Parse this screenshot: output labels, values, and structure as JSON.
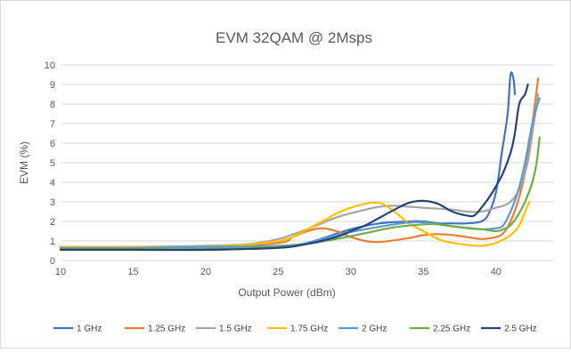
{
  "chart_data": {
    "type": "line",
    "title": "EVM 32QAM @ 2Msps",
    "xlabel": "Output Power (dBm)",
    "ylabel": "EVM (%)",
    "xlim": [
      10,
      44
    ],
    "ylim": [
      0,
      10
    ],
    "xticks": [
      10,
      15,
      20,
      25,
      30,
      35,
      40
    ],
    "yticks": [
      0,
      1,
      2,
      3,
      4,
      5,
      6,
      7,
      8,
      9,
      10
    ],
    "grid": "horizontal",
    "legend_position": "bottom",
    "series": [
      {
        "name": "1 GHz",
        "color": "#4472C4",
        "points": [
          [
            10,
            0.55
          ],
          [
            15,
            0.55
          ],
          [
            20,
            0.55
          ],
          [
            25,
            0.65
          ],
          [
            27,
            0.9
          ],
          [
            30,
            1.6
          ],
          [
            32,
            1.9
          ],
          [
            34,
            2.0
          ],
          [
            35,
            2.0
          ],
          [
            36,
            1.9
          ],
          [
            37,
            1.9
          ],
          [
            38,
            1.9
          ],
          [
            39,
            2.0
          ],
          [
            39.5,
            2.4
          ],
          [
            40,
            3.5
          ],
          [
            40.4,
            5.5
          ],
          [
            40.8,
            7.5
          ],
          [
            41.0,
            9.5
          ],
          [
            41.2,
            9.3
          ],
          [
            41.3,
            8.5
          ]
        ]
      },
      {
        "name": "1.25 GHz",
        "color": "#ED7D31",
        "points": [
          [
            10,
            0.6
          ],
          [
            15,
            0.6
          ],
          [
            20,
            0.65
          ],
          [
            25,
            0.9
          ],
          [
            26,
            1.2
          ],
          [
            27,
            1.5
          ],
          [
            28,
            1.65
          ],
          [
            29,
            1.5
          ],
          [
            30,
            1.2
          ],
          [
            31,
            1.0
          ],
          [
            32,
            0.95
          ],
          [
            34,
            1.15
          ],
          [
            35,
            1.3
          ],
          [
            36,
            1.35
          ],
          [
            37,
            1.3
          ],
          [
            38,
            1.2
          ],
          [
            39,
            1.1
          ],
          [
            40,
            1.2
          ],
          [
            40.5,
            1.4
          ],
          [
            41,
            2.0
          ],
          [
            41.5,
            3.0
          ],
          [
            42,
            4.5
          ],
          [
            42.5,
            7.0
          ],
          [
            42.9,
            9.3
          ]
        ]
      },
      {
        "name": "1.5 GHz",
        "color": "#A5A5A5",
        "points": [
          [
            10,
            0.7
          ],
          [
            15,
            0.7
          ],
          [
            20,
            0.75
          ],
          [
            23,
            0.85
          ],
          [
            25,
            1.1
          ],
          [
            27,
            1.6
          ],
          [
            29,
            2.2
          ],
          [
            31,
            2.6
          ],
          [
            32,
            2.75
          ],
          [
            33,
            2.8
          ],
          [
            34,
            2.75
          ],
          [
            35,
            2.7
          ],
          [
            37,
            2.6
          ],
          [
            38,
            2.5
          ],
          [
            39,
            2.5
          ],
          [
            40,
            2.7
          ],
          [
            40.5,
            2.8
          ],
          [
            41,
            3.0
          ],
          [
            41.5,
            3.5
          ],
          [
            42,
            4.5
          ],
          [
            42.3,
            5.5
          ],
          [
            42.6,
            7.0
          ],
          [
            42.9,
            8.5
          ]
        ]
      },
      {
        "name": "1.75 GHz",
        "color": "#FFC000",
        "points": [
          [
            10,
            0.7
          ],
          [
            15,
            0.7
          ],
          [
            20,
            0.7
          ],
          [
            25,
            1.0
          ],
          [
            27,
            1.6
          ],
          [
            29,
            2.4
          ],
          [
            30,
            2.7
          ],
          [
            31,
            2.9
          ],
          [
            32,
            2.95
          ],
          [
            33,
            2.5
          ],
          [
            34,
            1.9
          ],
          [
            35,
            1.5
          ],
          [
            36,
            1.1
          ],
          [
            37,
            0.9
          ],
          [
            38,
            0.8
          ],
          [
            39,
            0.75
          ],
          [
            40,
            0.9
          ],
          [
            41,
            1.3
          ],
          [
            41.6,
            1.8
          ],
          [
            42,
            2.5
          ],
          [
            42.3,
            3.0
          ]
        ]
      },
      {
        "name": "2 GHz",
        "color": "#5B9BD5",
        "points": [
          [
            10,
            0.65
          ],
          [
            15,
            0.65
          ],
          [
            20,
            0.7
          ],
          [
            25,
            0.75
          ],
          [
            27,
            0.9
          ],
          [
            29,
            1.3
          ],
          [
            31,
            1.6
          ],
          [
            33,
            1.85
          ],
          [
            34,
            1.95
          ],
          [
            35,
            1.95
          ],
          [
            37,
            1.75
          ],
          [
            38,
            1.65
          ],
          [
            39,
            1.6
          ],
          [
            40,
            1.65
          ],
          [
            40.5,
            1.8
          ],
          [
            41,
            2.5
          ],
          [
            41.5,
            3.5
          ],
          [
            42,
            5.0
          ],
          [
            42.5,
            7.0
          ],
          [
            43,
            8.3
          ]
        ]
      },
      {
        "name": "2.25 GHz",
        "color": "#70AD47",
        "points": [
          [
            10,
            0.6
          ],
          [
            15,
            0.6
          ],
          [
            20,
            0.6
          ],
          [
            25,
            0.7
          ],
          [
            27,
            0.85
          ],
          [
            29,
            1.1
          ],
          [
            31,
            1.4
          ],
          [
            33,
            1.7
          ],
          [
            35,
            1.85
          ],
          [
            36,
            1.85
          ],
          [
            37,
            1.75
          ],
          [
            39,
            1.6
          ],
          [
            40,
            1.5
          ],
          [
            40.5,
            1.6
          ],
          [
            41,
            1.8
          ],
          [
            41.5,
            2.3
          ],
          [
            42,
            3.0
          ],
          [
            42.5,
            4.0
          ],
          [
            42.8,
            5.0
          ],
          [
            43.0,
            6.3
          ]
        ]
      },
      {
        "name": "2.5 GHz",
        "color": "#264478",
        "points": [
          [
            10,
            0.55
          ],
          [
            15,
            0.55
          ],
          [
            20,
            0.55
          ],
          [
            25,
            0.65
          ],
          [
            27,
            0.85
          ],
          [
            29,
            1.2
          ],
          [
            30,
            1.5
          ],
          [
            31,
            1.8
          ],
          [
            32,
            2.2
          ],
          [
            33,
            2.6
          ],
          [
            34,
            2.95
          ],
          [
            35,
            3.05
          ],
          [
            36,
            2.9
          ],
          [
            37,
            2.5
          ],
          [
            38,
            2.3
          ],
          [
            38.5,
            2.3
          ],
          [
            39,
            2.7
          ],
          [
            39.5,
            3.2
          ],
          [
            40,
            3.8
          ],
          [
            40.5,
            4.5
          ],
          [
            41,
            5.5
          ],
          [
            41.3,
            6.5
          ],
          [
            41.6,
            8.0
          ],
          [
            42,
            8.5
          ],
          [
            42.2,
            9.0
          ]
        ]
      }
    ]
  }
}
